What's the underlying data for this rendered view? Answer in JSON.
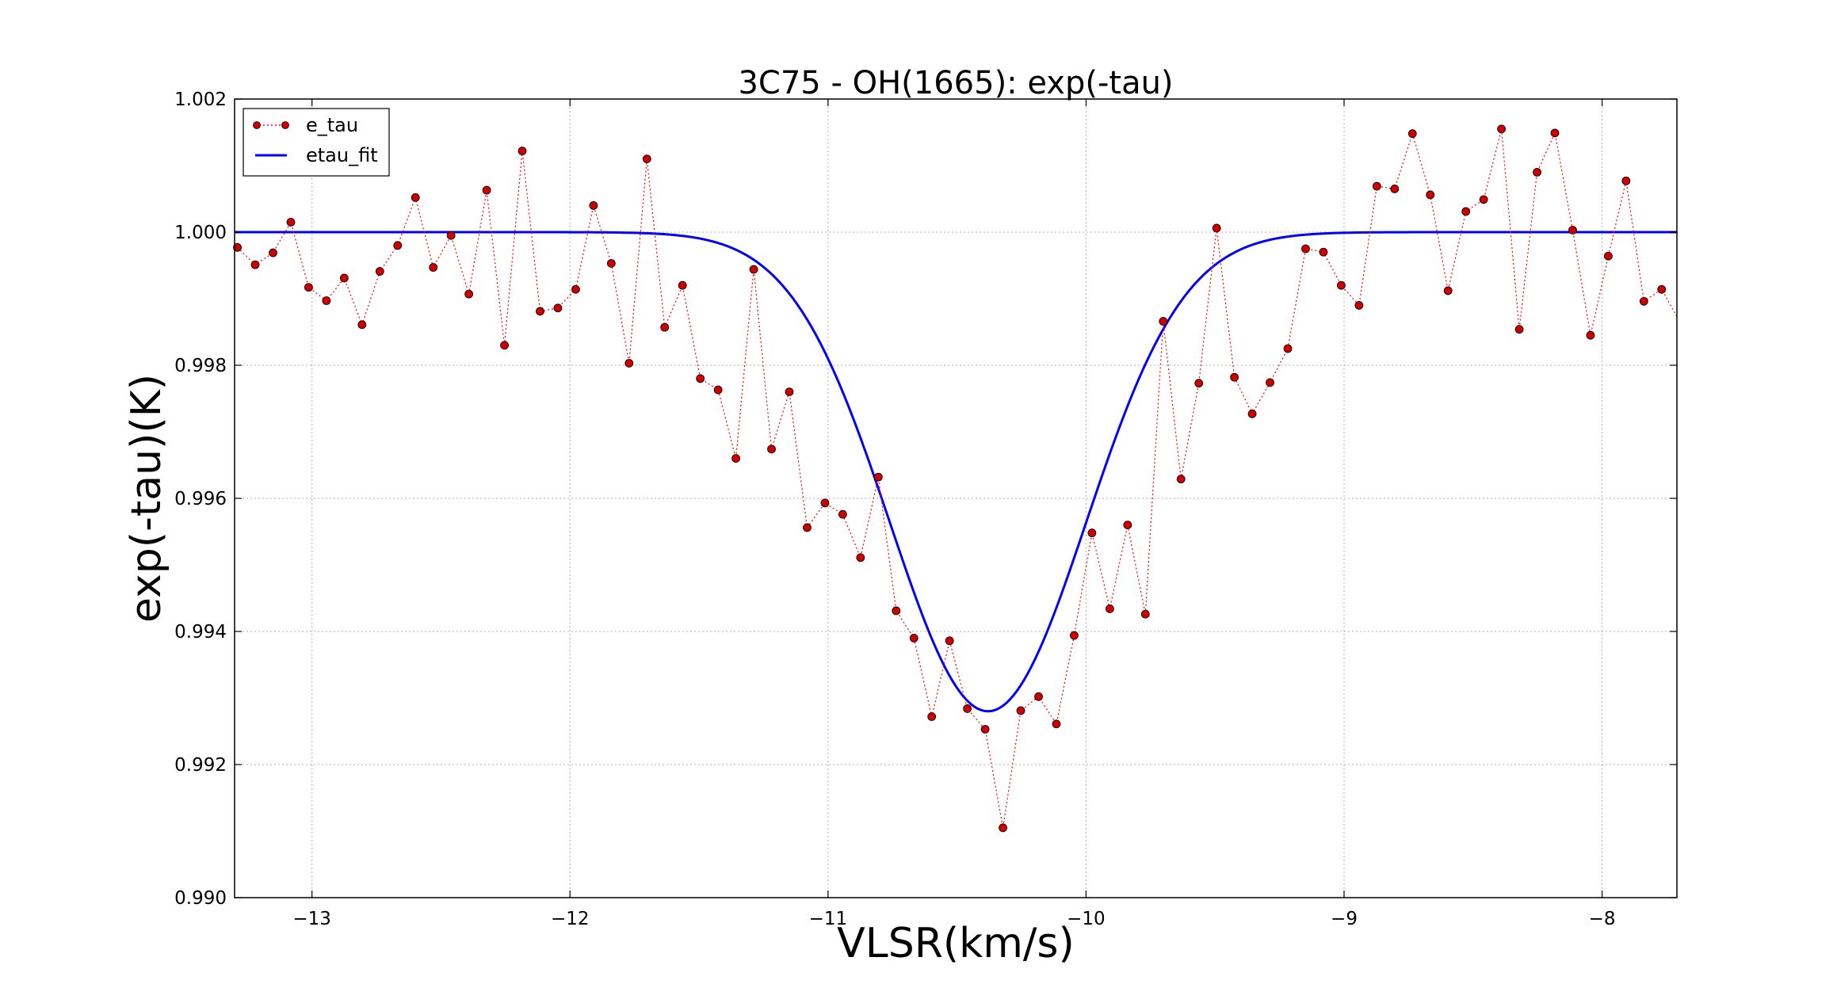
{
  "chart_data": {
    "type": "line",
    "title": "3C75 - OH(1665): exp(-tau)",
    "xlabel": "VLSR(km/s)",
    "ylabel": "exp(-tau)(K)",
    "xlim": [
      -13.3,
      -7.71
    ],
    "ylim": [
      0.99,
      1.002
    ],
    "xticks": [
      -13,
      -12,
      -11,
      -10,
      -9,
      -8
    ],
    "xtick_labels": [
      "−13",
      "−12",
      "−11",
      "−10",
      "−9",
      "−8"
    ],
    "yticks": [
      0.99,
      0.992,
      0.994,
      0.996,
      0.998,
      1.0,
      1.002
    ],
    "ytick_labels": [
      "0.990",
      "0.992",
      "0.994",
      "0.996",
      "0.998",
      "1.000",
      "1.002"
    ],
    "grid": true,
    "legend_position": "top-left",
    "series": [
      {
        "name": "e_tau",
        "style": "dotted-line-with-markers",
        "color": "#ff0000",
        "marker_color": "#cc0000",
        "x": [
          -13.289,
          -13.22,
          -13.151,
          -13.082,
          -13.013,
          -12.944,
          -12.875,
          -12.806,
          -12.737,
          -12.668,
          -12.599,
          -12.53,
          -12.461,
          -12.392,
          -12.323,
          -12.254,
          -12.185,
          -12.116,
          -12.047,
          -11.978,
          -11.909,
          -11.84,
          -11.771,
          -11.702,
          -11.633,
          -11.564,
          -11.495,
          -11.426,
          -11.357,
          -11.288,
          -11.219,
          -11.15,
          -11.081,
          -11.012,
          -10.943,
          -10.874,
          -10.805,
          -10.736,
          -10.667,
          -10.598,
          -10.529,
          -10.46,
          -10.391,
          -10.322,
          -10.253,
          -10.184,
          -10.115,
          -10.046,
          -9.977,
          -9.908,
          -9.839,
          -9.77,
          -9.701,
          -9.632,
          -9.563,
          -9.494,
          -9.425,
          -9.356,
          -9.287,
          -9.218,
          -9.149,
          -9.08,
          -9.011,
          -8.942,
          -8.873,
          -8.804,
          -8.735,
          -8.666,
          -8.597,
          -8.528,
          -8.459,
          -8.39,
          -8.321,
          -8.252,
          -8.183,
          -8.114,
          -8.045,
          -7.976,
          -7.907,
          -7.838,
          -7.769,
          -7.71
        ],
        "y": [
          0.99977,
          0.99951,
          0.99969,
          1.00015,
          0.99917,
          0.99897,
          0.99931,
          0.99861,
          0.99941,
          0.9998,
          1.00052,
          0.99947,
          0.99995,
          0.99907,
          1.00063,
          0.9983,
          1.00122,
          0.99881,
          0.99886,
          0.99914,
          1.0004,
          0.99953,
          0.99803,
          1.0011,
          0.99857,
          0.9992,
          0.9978,
          0.99763,
          0.9966,
          0.99944,
          0.99674,
          0.9976,
          0.99556,
          0.99593,
          0.99576,
          0.99511,
          0.99632,
          0.99431,
          0.9939,
          0.99272,
          0.99386,
          0.99284,
          0.99253,
          0.99105,
          0.99281,
          0.99302,
          0.99261,
          0.99394,
          0.99548,
          0.99434,
          0.9956,
          0.99426,
          0.99866,
          0.99629,
          0.99773,
          1.00006,
          0.99782,
          0.99727,
          0.99774,
          0.99825,
          0.99975,
          0.9997,
          0.9992,
          0.9989,
          1.00069,
          1.00065,
          1.00148,
          1.00056,
          0.99912,
          1.00031,
          1.00049,
          1.00155,
          0.99854,
          1.0009,
          1.00149,
          1.00003,
          0.99845,
          0.99964,
          1.00077,
          0.99896,
          0.99914,
          0.99873
        ]
      },
      {
        "name": "etau_fit",
        "style": "solid-line",
        "color": "#0000ff",
        "model": {
          "baseline": 1.0,
          "depth": 0.0072,
          "center": -10.38,
          "sigma": 0.38
        }
      }
    ]
  }
}
